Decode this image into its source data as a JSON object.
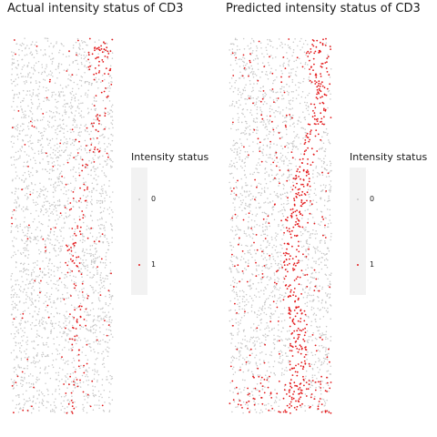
{
  "panels": [
    {
      "title": "Actual intensity status of CD3",
      "legend": {
        "title": "Intensity status",
        "labels": [
          "0",
          "1"
        ]
      }
    },
    {
      "title": "Predicted intensity status of CD3",
      "legend": {
        "title": "Intensity status",
        "labels": [
          "0",
          "1"
        ]
      }
    }
  ],
  "colors": {
    "status_0": "#c8c8c8",
    "status_1": "#e31a1c"
  },
  "chart_data": [
    {
      "type": "scatter",
      "title": "Actual intensity status of CD3",
      "legend_title": "Intensity status",
      "series": [
        {
          "name": "0",
          "color": "#c8c8c8"
        },
        {
          "name": "1",
          "color": "#e31a1c"
        }
      ],
      "positive_fraction": 0.12,
      "grid": false,
      "legend_position": "right"
    },
    {
      "type": "scatter",
      "title": "Predicted intensity status of CD3",
      "legend_title": "Intensity status",
      "series": [
        {
          "name": "0",
          "color": "#c8c8c8"
        },
        {
          "name": "1",
          "color": "#e31a1c"
        }
      ],
      "positive_fraction": 0.28,
      "grid": false,
      "legend_position": "right"
    }
  ]
}
